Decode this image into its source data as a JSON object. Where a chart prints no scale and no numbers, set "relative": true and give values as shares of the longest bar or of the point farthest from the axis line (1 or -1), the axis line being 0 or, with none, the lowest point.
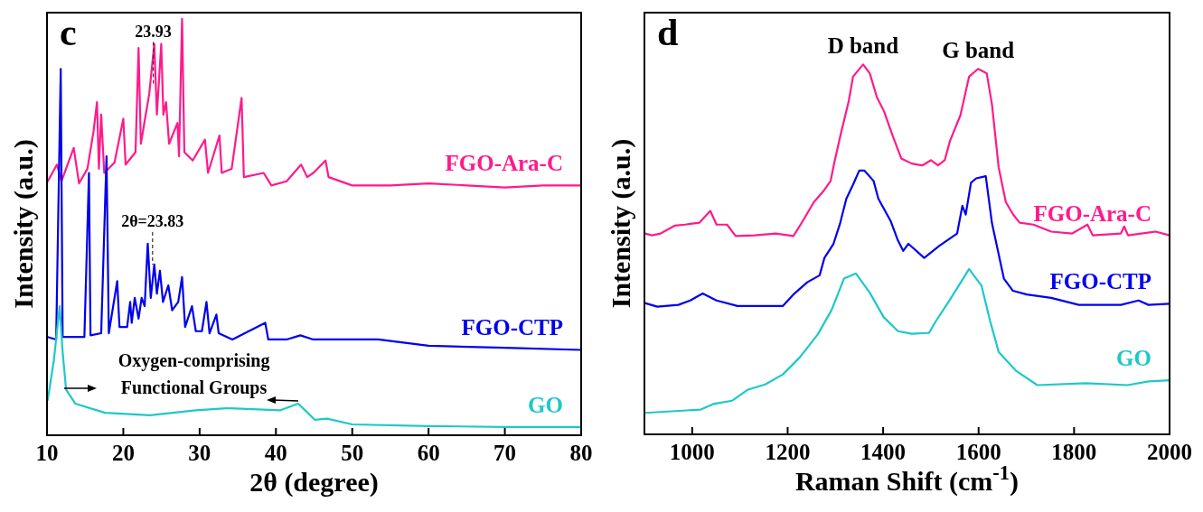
{
  "chart_data": [
    {
      "type": "line",
      "relative": true,
      "xlabel": "2θ (degree)",
      "ylabel": "Intensity (a.u.)",
      "xlim": [
        10,
        80
      ],
      "xticks": [
        10,
        20,
        30,
        40,
        50,
        60,
        70,
        80
      ],
      "annotations": [
        "c",
        "Oxygen-comprising Functional Groups",
        {
          "text": "23.93",
          "x": 23.93,
          "y": 0.94
        },
        {
          "text": "2θ=23.83",
          "x": 23.83,
          "y": 0.41
        }
      ],
      "series": [
        {
          "name": "FGO-Ara-C",
          "color": "#ff1a8c",
          "x": [
            10.1,
            11.3,
            11.9,
            13.5,
            14.2,
            15.3,
            16.1,
            16.55,
            16.8,
            17.1,
            17.5,
            18.85,
            20.0,
            20.3,
            21.6,
            22.0,
            22.3,
            23.4,
            24.06,
            24.4,
            24.97,
            25.25,
            25.6,
            26.0,
            27.1,
            27.3,
            27.7,
            28.0,
            29.1,
            30.7,
            31.1,
            32.6,
            32.9,
            34.2,
            35.5,
            35.8,
            38.4,
            39.4,
            41.4,
            43.3,
            44.1,
            44.9,
            46.5,
            46.9,
            50,
            55,
            60,
            65,
            70,
            75,
            80
          ],
          "values": [
            0.61,
            0.65,
            0.61,
            0.69,
            0.605,
            0.64,
            0.73,
            0.8,
            0.64,
            0.77,
            0.63,
            0.655,
            0.76,
            0.65,
            0.68,
            0.93,
            0.7,
            0.82,
            0.94,
            0.77,
            0.94,
            0.77,
            0.8,
            0.7,
            0.75,
            0.67,
            1.0,
            0.68,
            0.66,
            0.71,
            0.63,
            0.72,
            0.63,
            0.64,
            0.81,
            0.62,
            0.63,
            0.6,
            0.61,
            0.65,
            0.62,
            0.63,
            0.66,
            0.62,
            0.6,
            0.6,
            0.605,
            0.6,
            0.595,
            0.6,
            0.6
          ]
        },
        {
          "name": "FGO-CTP",
          "color": "#0000ee",
          "x": [
            10.1,
            11.2,
            11.8,
            12.05,
            14.9,
            15.5,
            15.7,
            17.1,
            17.8,
            18.1,
            19.2,
            19.5,
            20.5,
            20.9,
            21.1,
            21.5,
            22.0,
            22.4,
            22.8,
            23.2,
            23.6,
            24.06,
            24.4,
            24.8,
            25.2,
            25.9,
            26.4,
            27.2,
            27.7,
            28.1,
            29.0,
            29.5,
            30.3,
            30.9,
            31.3,
            32.2,
            32.5,
            34.3,
            38.6,
            39.0,
            41.4,
            43.2,
            44.9,
            47.3,
            53.4,
            60,
            70,
            80
          ],
          "values": [
            0.236,
            0.23,
            0.88,
            0.236,
            0.236,
            0.63,
            0.24,
            0.245,
            0.67,
            0.245,
            0.37,
            0.26,
            0.26,
            0.32,
            0.27,
            0.33,
            0.28,
            0.33,
            0.31,
            0.46,
            0.33,
            0.41,
            0.34,
            0.395,
            0.32,
            0.36,
            0.3,
            0.32,
            0.38,
            0.26,
            0.31,
            0.25,
            0.25,
            0.32,
            0.245,
            0.29,
            0.245,
            0.23,
            0.27,
            0.23,
            0.23,
            0.24,
            0.23,
            0.23,
            0.23,
            0.215,
            0.21,
            0.205
          ]
        },
        {
          "name": "GO",
          "color": "#1ec8c8",
          "x": [
            10.1,
            10.9,
            11.66,
            12.05,
            12.5,
            13.7,
            17.6,
            23.5,
            29.5,
            33.5,
            40.6,
            42.9,
            44.1,
            45.1,
            46.7,
            50,
            60,
            70,
            80
          ],
          "values": [
            0.085,
            0.18,
            0.31,
            0.2,
            0.11,
            0.076,
            0.054,
            0.048,
            0.06,
            0.065,
            0.06,
            0.076,
            0.055,
            0.037,
            0.04,
            0.026,
            0.022,
            0.02,
            0.02
          ]
        }
      ]
    },
    {
      "type": "line",
      "relative": true,
      "xlabel": "Raman Shift (cm$^{-1}$)",
      "ylabel": "Intensity (a.u.)",
      "xlim": [
        900,
        2000
      ],
      "xticks": [
        1000,
        1200,
        1400,
        1600,
        1800,
        2000
      ],
      "annotations": [
        "d",
        {
          "text": "D band",
          "x": 1358,
          "y": 1.0
        },
        {
          "text": "G band",
          "x": 1599,
          "y": 0.988
        }
      ],
      "series": [
        {
          "name": "FGO-Ara-C",
          "color": "#ff1a8c",
          "x": [
            901,
            916,
            934,
            963,
            985,
            1015,
            1038,
            1051,
            1073,
            1091,
            1131,
            1175,
            1212,
            1230,
            1255,
            1274,
            1290,
            1298,
            1312,
            1328,
            1337,
            1358,
            1372,
            1387,
            1402,
            1420,
            1438,
            1460,
            1482,
            1500,
            1515,
            1529,
            1540,
            1562,
            1580,
            1599,
            1617,
            1628,
            1642,
            1657,
            1672,
            1686,
            1715,
            1752,
            1796,
            1828,
            1839,
            1898,
            1905,
            1913,
            1971,
            2000
          ],
          "values": [
            0.543,
            0.538,
            0.543,
            0.564,
            0.567,
            0.572,
            0.604,
            0.567,
            0.567,
            0.536,
            0.538,
            0.543,
            0.536,
            0.573,
            0.628,
            0.656,
            0.685,
            0.736,
            0.816,
            0.901,
            0.967,
            1.0,
            0.976,
            0.911,
            0.873,
            0.807,
            0.746,
            0.732,
            0.727,
            0.741,
            0.727,
            0.741,
            0.793,
            0.863,
            0.967,
            0.988,
            0.976,
            0.892,
            0.722,
            0.628,
            0.595,
            0.572,
            0.567,
            0.548,
            0.543,
            0.567,
            0.538,
            0.543,
            0.562,
            0.538,
            0.548,
            0.538
          ]
        },
        {
          "name": "FGO-CTP",
          "color": "#0000ee",
          "x": [
            901,
            927,
            971,
            996,
            1022,
            1051,
            1095,
            1190,
            1212,
            1241,
            1267,
            1277,
            1296,
            1310,
            1323,
            1337,
            1350,
            1361,
            1380,
            1390,
            1416,
            1431,
            1442,
            1453,
            1486,
            1518,
            1555,
            1566,
            1573,
            1584,
            1595,
            1615,
            1628,
            1642,
            1653,
            1672,
            1701,
            1752,
            1810,
            1898,
            1935,
            1956,
            2000
          ],
          "values": [
            0.355,
            0.345,
            0.35,
            0.362,
            0.381,
            0.362,
            0.347,
            0.347,
            0.378,
            0.411,
            0.43,
            0.477,
            0.515,
            0.571,
            0.637,
            0.675,
            0.713,
            0.713,
            0.685,
            0.637,
            0.576,
            0.524,
            0.496,
            0.515,
            0.477,
            0.51,
            0.543,
            0.618,
            0.594,
            0.68,
            0.692,
            0.698,
            0.571,
            0.487,
            0.421,
            0.388,
            0.378,
            0.369,
            0.35,
            0.35,
            0.362,
            0.35,
            0.353
          ]
        },
        {
          "name": "GO",
          "color": "#1ec8c8",
          "x": [
            901,
            1018,
            1044,
            1084,
            1117,
            1153,
            1190,
            1226,
            1263,
            1292,
            1318,
            1343,
            1372,
            1401,
            1431,
            1460,
            1496,
            1511,
            1540,
            1580,
            1606,
            1624,
            1642,
            1679,
            1723,
            1825,
            1912,
            1956,
            2000
          ],
          "values": [
            0.058,
            0.067,
            0.082,
            0.091,
            0.121,
            0.135,
            0.162,
            0.209,
            0.27,
            0.336,
            0.421,
            0.435,
            0.383,
            0.317,
            0.279,
            0.272,
            0.274,
            0.307,
            0.364,
            0.447,
            0.402,
            0.307,
            0.223,
            0.171,
            0.133,
            0.138,
            0.133,
            0.143,
            0.146
          ]
        }
      ]
    }
  ]
}
